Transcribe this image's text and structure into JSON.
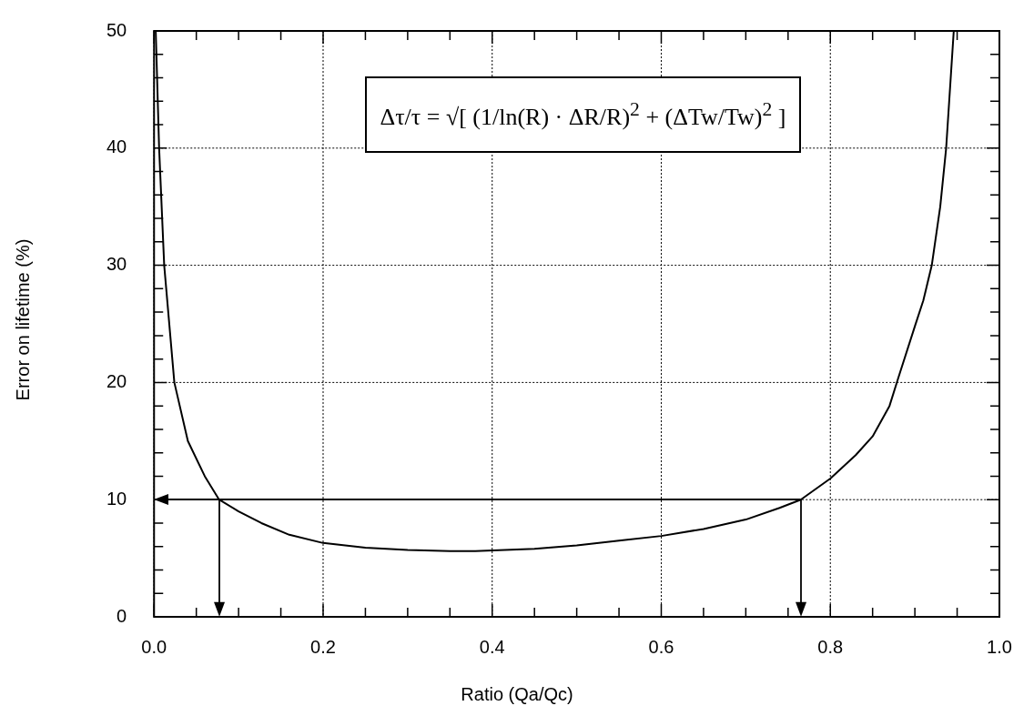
{
  "chart_data": {
    "type": "line",
    "xlabel": "Ratio  (Qa/Qc)",
    "ylabel": "Error on lifetime (%)",
    "annotations": [
      "Δτ/τ = √[ (1/ln(R) · ΔR/R)$^{2}$ + (ΔTw/Tw)$^{2}$ ]"
    ],
    "xlim": [
      0,
      1
    ],
    "ylim": [
      0,
      50
    ],
    "xticks": [
      {
        "value": 0,
        "label": "0.0"
      },
      {
        "value": 0.05,
        "label": null
      },
      {
        "value": 0.1,
        "label": null
      },
      {
        "value": 0.15,
        "label": null
      },
      {
        "value": 0.2,
        "label": "0.2"
      },
      {
        "value": 0.25,
        "label": null
      },
      {
        "value": 0.3,
        "label": null
      },
      {
        "value": 0.35,
        "label": null
      },
      {
        "value": 0.4,
        "label": "0.4"
      },
      {
        "value": 0.45,
        "label": null
      },
      {
        "value": 0.5,
        "label": null
      },
      {
        "value": 0.55,
        "label": null
      },
      {
        "value": 0.6,
        "label": "0.6"
      },
      {
        "value": 0.65,
        "label": null
      },
      {
        "value": 0.7,
        "label": null
      },
      {
        "value": 0.75,
        "label": null
      },
      {
        "value": 0.8,
        "label": "0.8"
      },
      {
        "value": 0.85,
        "label": null
      },
      {
        "value": 0.9,
        "label": null
      },
      {
        "value": 0.95,
        "label": null
      },
      {
        "value": 1,
        "label": "1.0"
      }
    ],
    "yticks": [
      0,
      {
        "value": 2,
        "label": null
      },
      {
        "value": 4,
        "label": null
      },
      {
        "value": 6,
        "label": null
      },
      {
        "value": 8,
        "label": null
      },
      10,
      {
        "value": 12,
        "label": null
      },
      {
        "value": 14,
        "label": null
      },
      {
        "value": 16,
        "label": null
      },
      {
        "value": 18,
        "label": null
      },
      20,
      {
        "value": 22,
        "label": null
      },
      {
        "value": 24,
        "label": null
      },
      {
        "value": 26,
        "label": null
      },
      {
        "value": 28,
        "label": null
      },
      30,
      {
        "value": 32,
        "label": null
      },
      {
        "value": 34,
        "label": null
      },
      {
        "value": 36,
        "label": null
      },
      {
        "value": 38,
        "label": null
      },
      40,
      {
        "value": 42,
        "label": null
      },
      {
        "value": 44,
        "label": null
      },
      {
        "value": 46,
        "label": null
      },
      {
        "value": 48,
        "label": null
      },
      50
    ],
    "grid": true,
    "marker": "none",
    "line_style": "solid",
    "legend": false,
    "series": [
      {
        "color": "#000000",
        "x": [
          0.002,
          0.006,
          0.012,
          0.024,
          0.04,
          0.06,
          0.077,
          0.1,
          0.127,
          0.16,
          0.2,
          0.25,
          0.3,
          0.35,
          0.38,
          0.45,
          0.5,
          0.55,
          0.6,
          0.65,
          0.7,
          0.74,
          0.765,
          0.8,
          0.83,
          0.85,
          0.87,
          0.88,
          0.9,
          0.91,
          0.92,
          0.93,
          0.937,
          0.946
        ],
        "values": [
          50,
          40,
          30,
          20,
          15,
          12,
          10,
          9,
          8,
          7,
          6.3,
          5.9,
          5.7,
          5.6,
          5.6,
          5.8,
          6.1,
          6.5,
          6.9,
          7.5,
          8.3,
          9.3,
          10,
          11.8,
          13.8,
          15.4,
          18,
          20.3,
          24.8,
          27,
          30,
          35,
          40,
          50
        ]
      }
    ]
  }
}
